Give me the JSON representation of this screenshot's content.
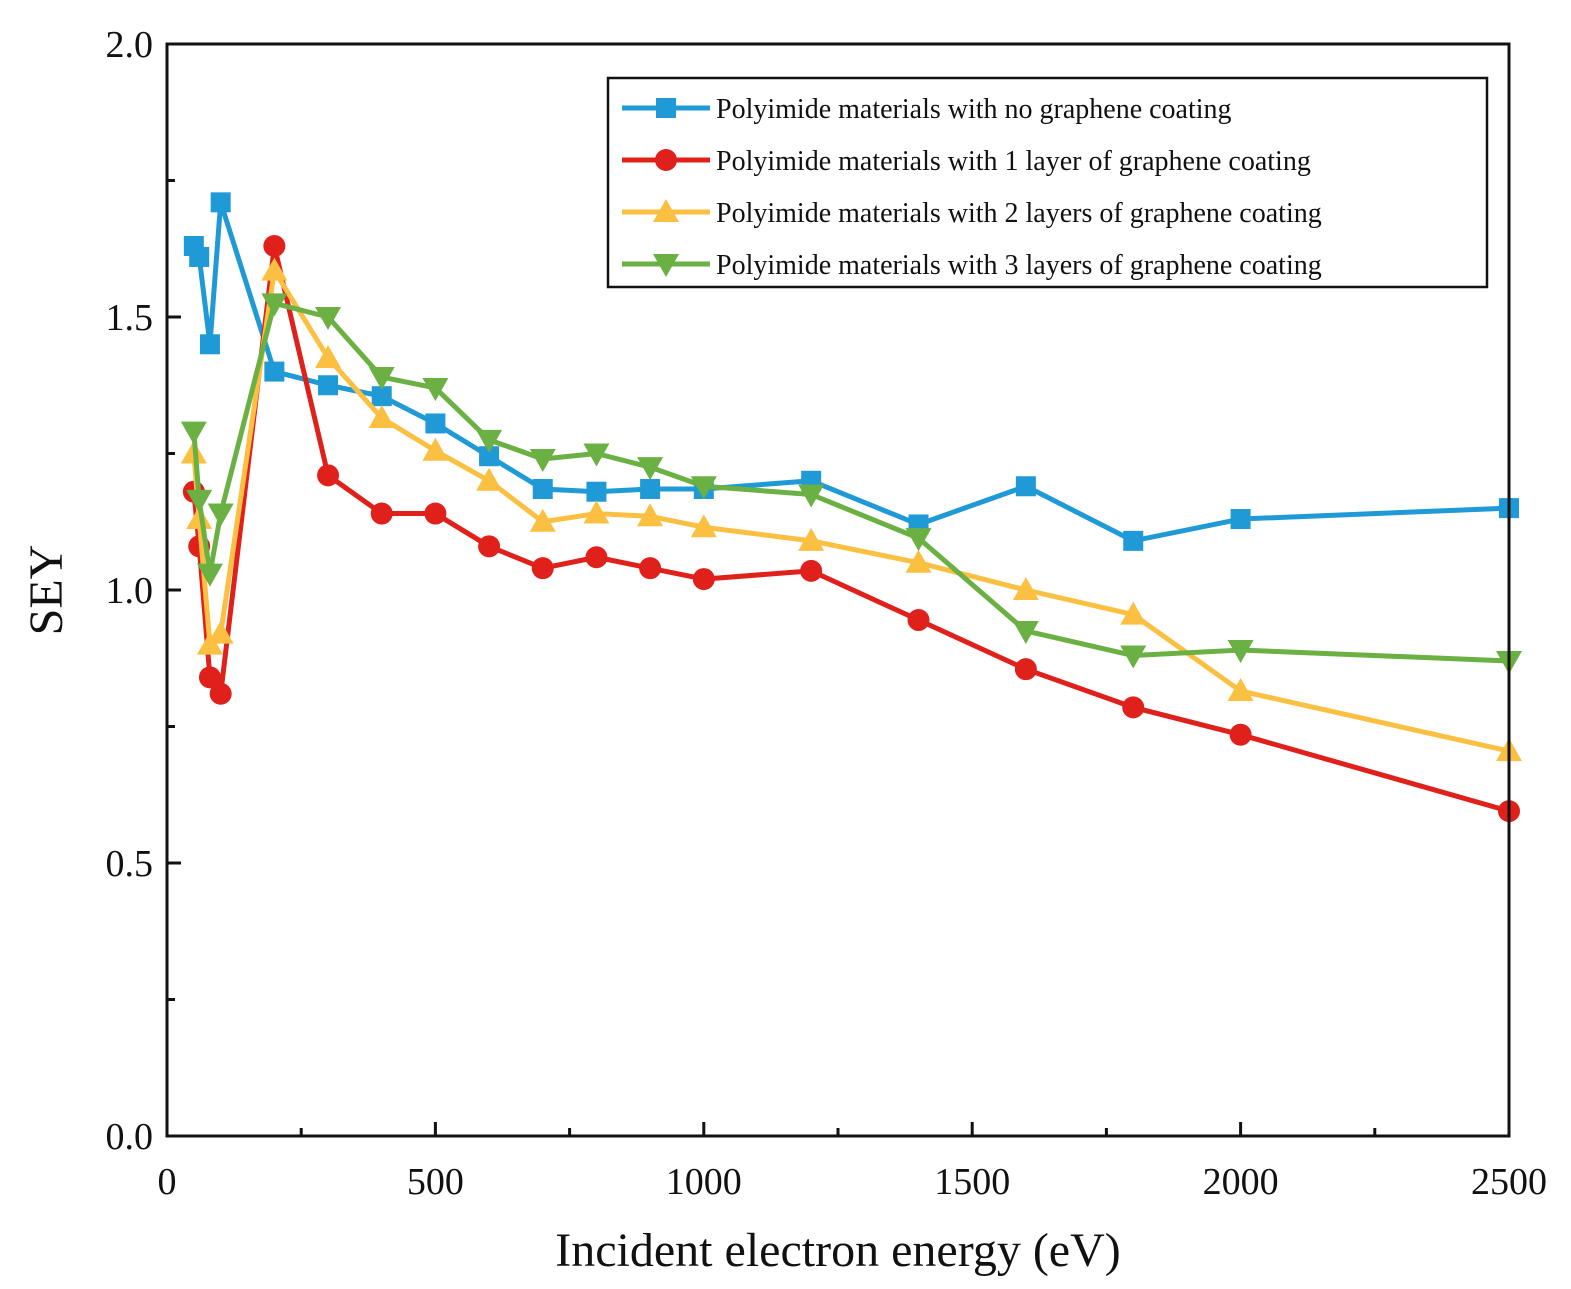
{
  "chart_data": {
    "type": "line",
    "title": "",
    "xlabel": "Incident electron energy (eV)",
    "ylabel": "SEY",
    "xlim": [
      0,
      2500
    ],
    "ylim": [
      0,
      2.0
    ],
    "xticks": [
      0,
      500,
      1000,
      1500,
      2000,
      2500
    ],
    "xtick_labels": [
      "0",
      "500",
      "1000",
      "1500",
      "2000",
      "2500"
    ],
    "yticks": [
      0.0,
      0.5,
      1.0,
      1.5,
      2.0
    ],
    "ytick_labels": [
      "0.0",
      "0.5",
      "1.0",
      "1.5",
      "2.0"
    ],
    "grid": false,
    "legend_position": "top-right",
    "x": [
      50,
      60,
      80,
      100,
      200,
      300,
      400,
      500,
      600,
      700,
      800,
      900,
      1000,
      1200,
      1400,
      1600,
      1800,
      2000,
      2500
    ],
    "series": [
      {
        "name": "Polyimide materials with no graphene coating",
        "color": "#1f9ad6",
        "marker": "square",
        "values": [
          1.63,
          1.61,
          1.45,
          1.71,
          1.4,
          1.375,
          1.355,
          1.305,
          1.245,
          1.185,
          1.18,
          1.185,
          1.185,
          1.2,
          1.12,
          1.19,
          1.09,
          1.13,
          1.15
        ]
      },
      {
        "name": "Polyimide materials with 1 layer of graphene coating",
        "color": "#e0201b",
        "marker": "circle",
        "values": [
          1.18,
          1.08,
          0.84,
          0.81,
          1.63,
          1.21,
          1.14,
          1.14,
          1.08,
          1.04,
          1.06,
          1.04,
          1.02,
          1.035,
          0.945,
          0.855,
          0.785,
          0.735,
          0.595
        ]
      },
      {
        "name": "Polyimide materials with 2 layers of graphene coating",
        "color": "#fbc041",
        "marker": "triangle-up",
        "values": [
          1.25,
          1.13,
          0.9,
          0.92,
          1.585,
          1.425,
          1.315,
          1.255,
          1.2,
          1.125,
          1.14,
          1.135,
          1.115,
          1.09,
          1.05,
          1.0,
          0.955,
          0.815,
          0.705
        ]
      },
      {
        "name": "Polyimide materials with 3 layers of graphene coating",
        "color": "#6ab043",
        "marker": "triangle-down",
        "values": [
          1.29,
          1.165,
          1.03,
          1.14,
          1.525,
          1.5,
          1.39,
          1.37,
          1.275,
          1.24,
          1.25,
          1.225,
          1.19,
          1.175,
          1.095,
          0.925,
          0.88,
          0.89,
          0.87
        ]
      }
    ]
  }
}
